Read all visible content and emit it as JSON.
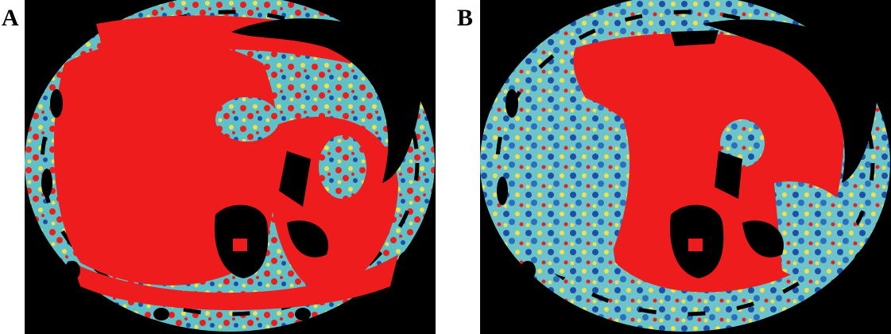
{
  "panels": [
    {
      "label": "A",
      "colors": {
        "background": "#000000",
        "high": "#ee1c1c",
        "mid": "#f2e04a",
        "low": "#5fc0c8",
        "lowest": "#1e4fa8"
      }
    },
    {
      "label": "B",
      "colors": {
        "background": "#000000",
        "high": "#ee1c1c",
        "mid": "#f2e04a",
        "low": "#5fc0c8",
        "lowest": "#1e4fa8"
      }
    }
  ]
}
